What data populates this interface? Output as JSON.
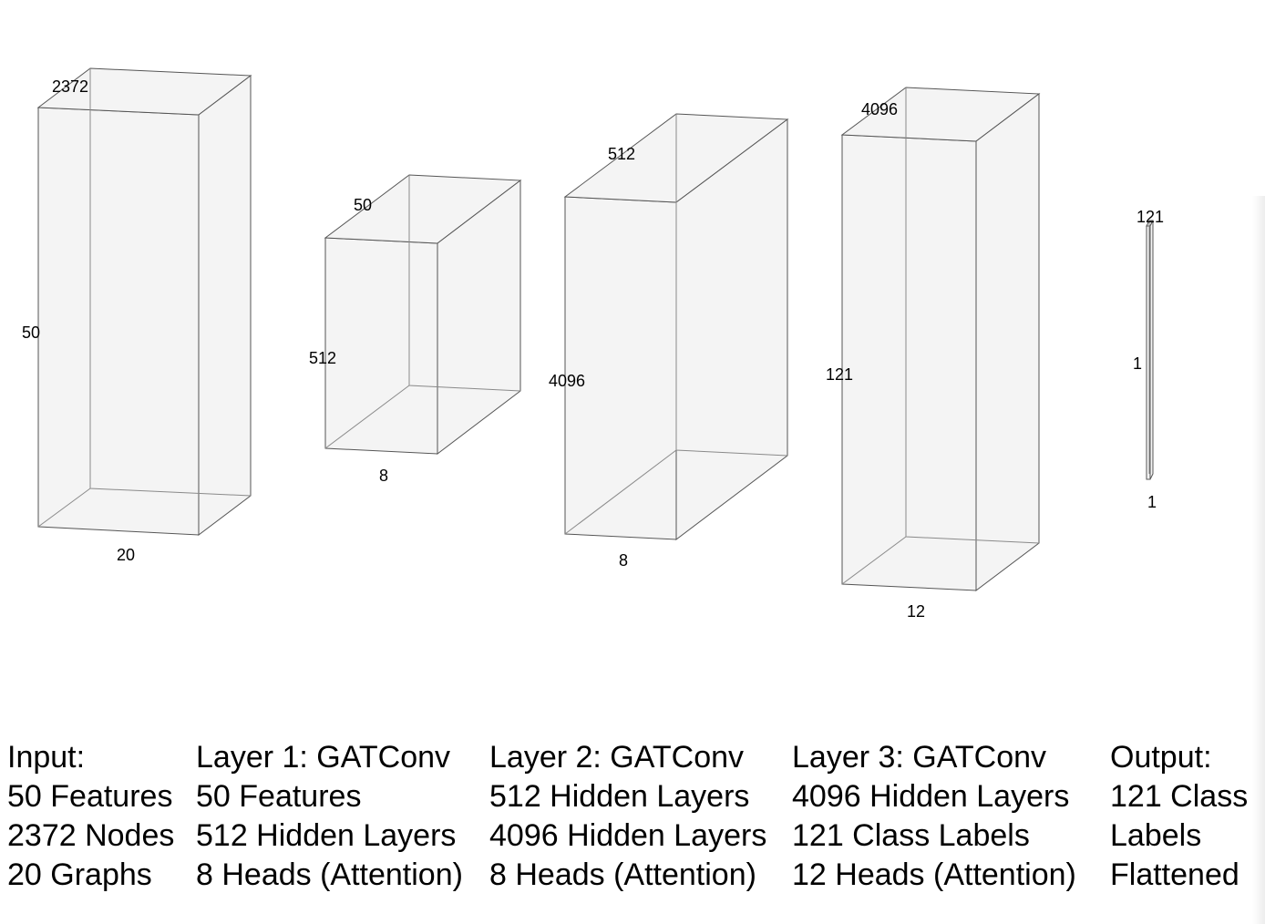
{
  "blocks": [
    {
      "id": "input",
      "dims": {
        "front_left": "50",
        "top": "2372",
        "bottom": "20"
      },
      "caption": [
        "Input:",
        "50 Features",
        "2372 Nodes",
        "20 Graphs"
      ]
    },
    {
      "id": "layer1",
      "dims": {
        "front_left": "512",
        "top": "50",
        "bottom": "8"
      },
      "caption": [
        "Layer 1: GATConv",
        "50 Features",
        "512 Hidden Layers",
        "8 Heads (Attention)"
      ]
    },
    {
      "id": "layer2",
      "dims": {
        "front_left": "4096",
        "top": "512",
        "bottom": "8"
      },
      "caption": [
        "Layer 2: GATConv",
        "512 Hidden Layers",
        "4096 Hidden Layers",
        "8 Heads (Attention)"
      ]
    },
    {
      "id": "layer3",
      "dims": {
        "front_left": "121",
        "top": "4096",
        "bottom": "12"
      },
      "caption": [
        "Layer 3: GATConv",
        "4096 Hidden Layers",
        "121 Class Labels",
        "12 Heads (Attention)"
      ]
    },
    {
      "id": "output",
      "dims": {
        "front_left": "1",
        "top": "121",
        "bottom": "1"
      },
      "caption": [
        "Output:",
        "121 Class",
        "Labels",
        "Flattened"
      ]
    }
  ],
  "colors": {
    "face_fill": "#f4f4f4",
    "edge": "#555555",
    "hidden_edge": "#8a8a8a"
  }
}
